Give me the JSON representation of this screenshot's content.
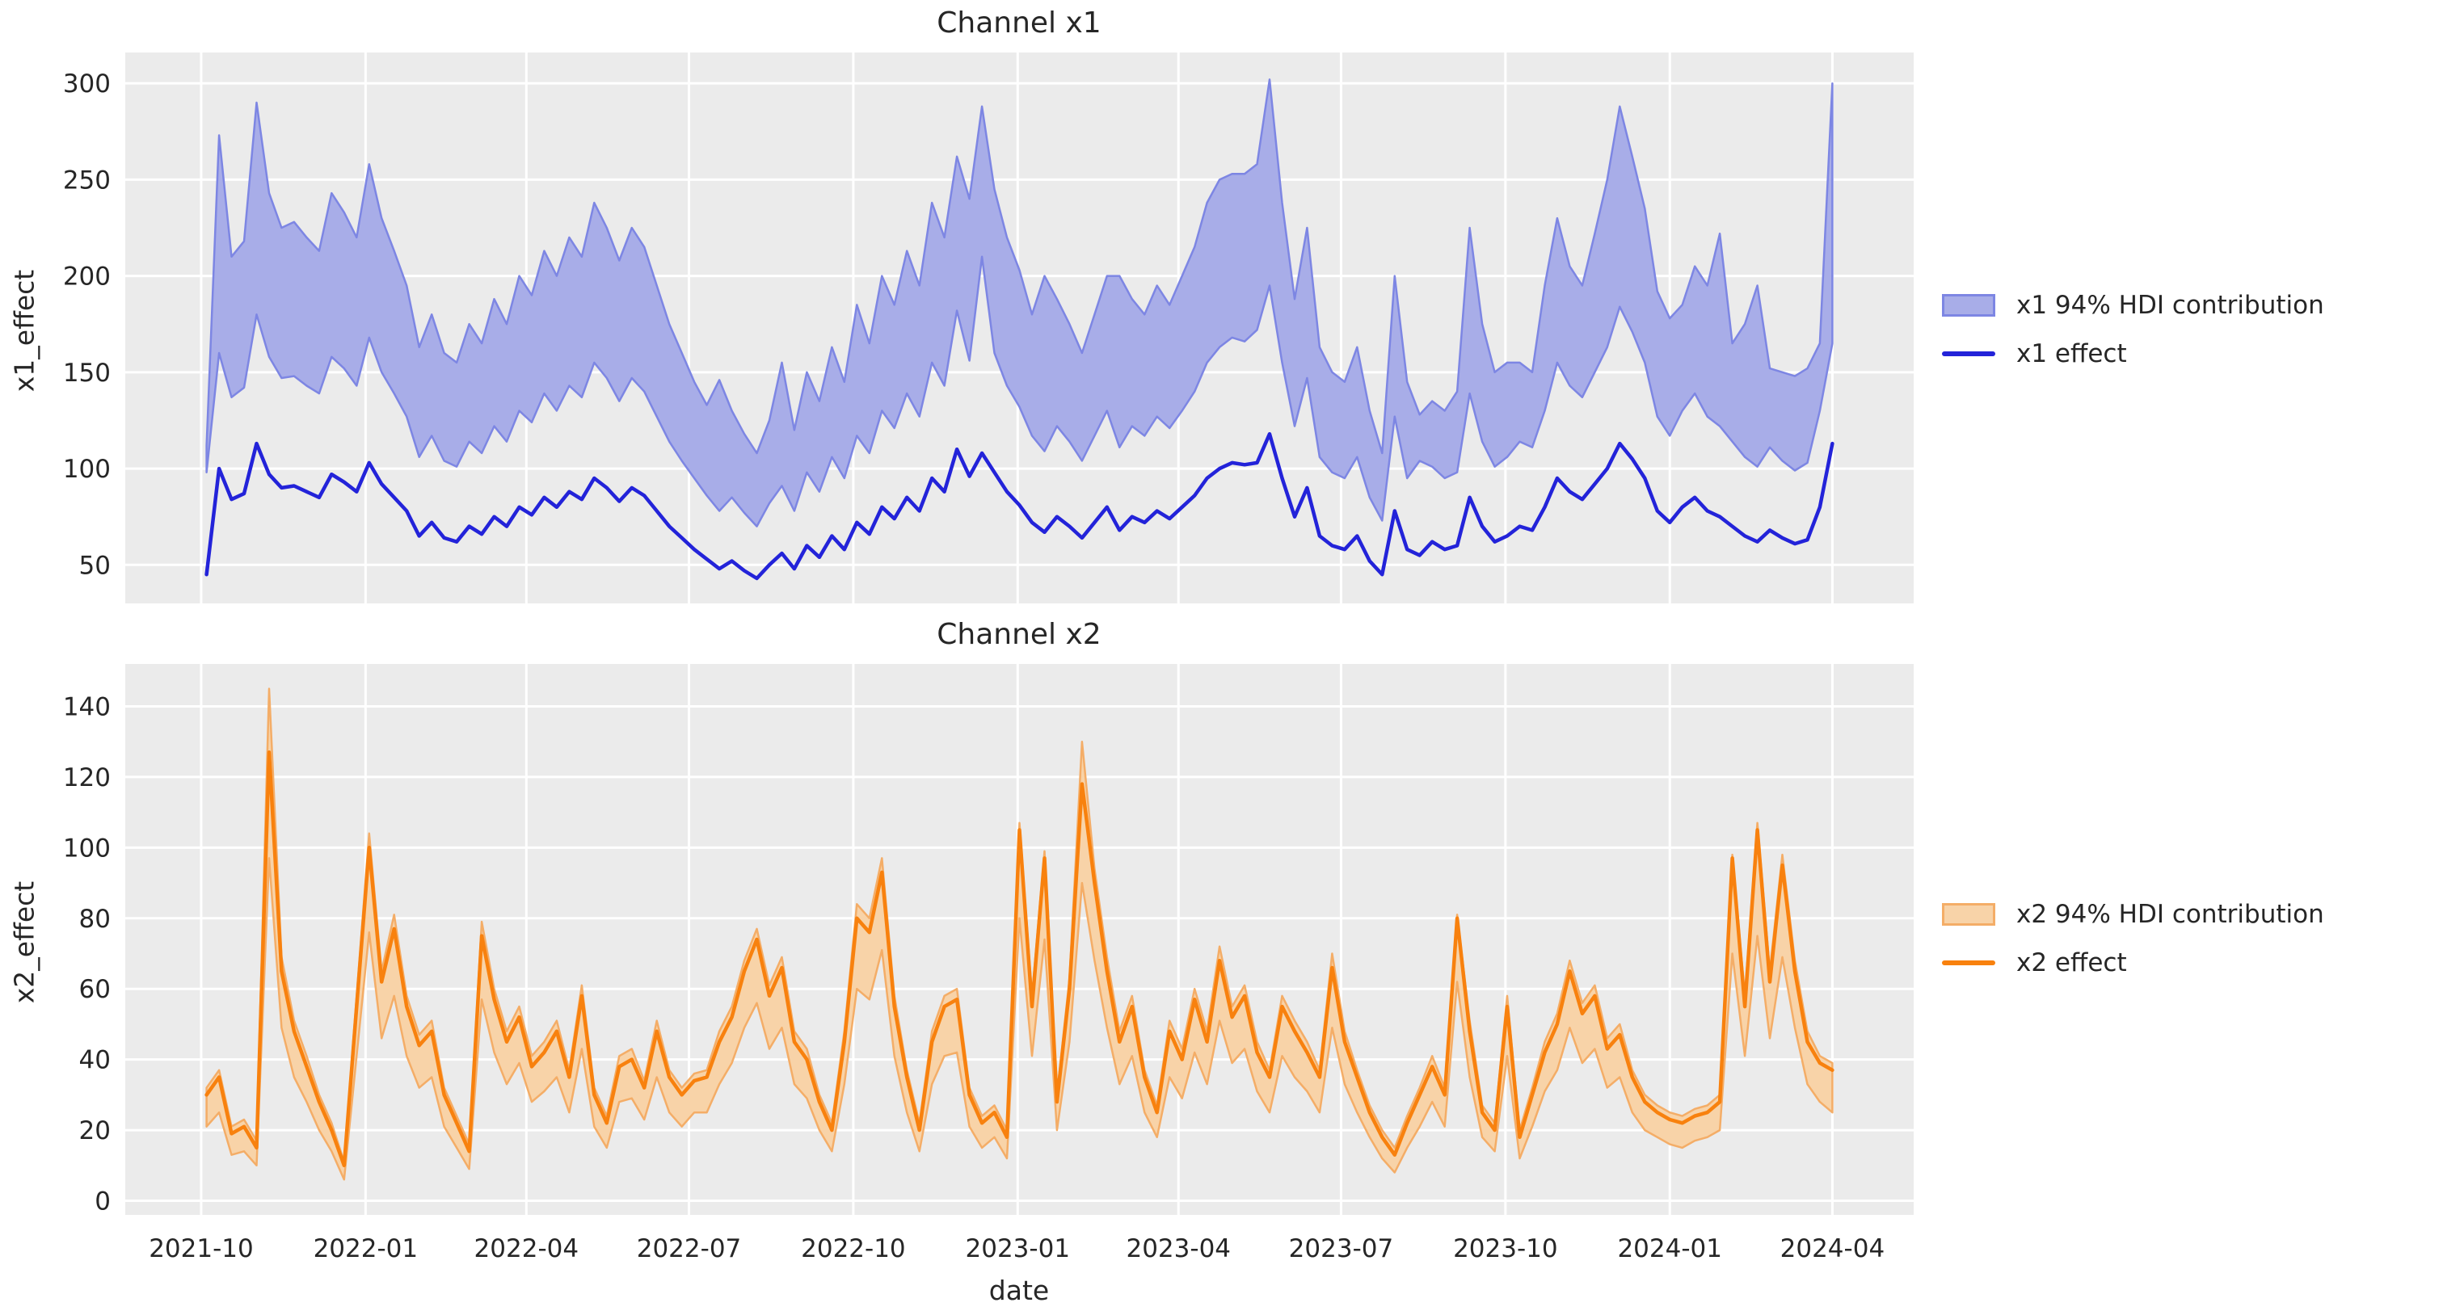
{
  "style": {
    "page_background": "#ffffff",
    "axes_background": "#ebebeb",
    "grid_color": "#ffffff",
    "text_color": "#262626"
  },
  "x_axis": {
    "label": "date"
  },
  "chart_data": [
    {
      "type": "line",
      "name": "x1",
      "title": "Channel x1",
      "ylabel": "x1_effect",
      "x_start": "2021-10-04",
      "x_step_days": 7,
      "n_points": 131,
      "x_tick_labels": [
        "2021-10",
        "2022-01",
        "2022-04",
        "2022-07",
        "2022-10",
        "2023-01",
        "2023-04",
        "2023-07",
        "2023-10",
        "2024-01",
        "2024-04"
      ],
      "y_ticks": [
        50,
        100,
        150,
        200,
        250,
        300
      ],
      "ylim": [
        30,
        316
      ],
      "grid": true,
      "legend_position": "center right outside",
      "series": [
        {
          "name": "x1 94% HDI contribution",
          "kind": "band",
          "fill": "#a8ade8",
          "edge": "#7d86e3",
          "upper": [
            112,
            273,
            210,
            218,
            290,
            243,
            225,
            228,
            220,
            213,
            243,
            233,
            220,
            258,
            230,
            213,
            195,
            163,
            180,
            160,
            155,
            175,
            165,
            188,
            175,
            200,
            190,
            213,
            200,
            220,
            210,
            238,
            225,
            208,
            225,
            215,
            195,
            175,
            160,
            145,
            133,
            146,
            130,
            118,
            108,
            125,
            155,
            120,
            150,
            135,
            163,
            145,
            185,
            165,
            200,
            185,
            213,
            195,
            238,
            220,
            262,
            240,
            288,
            245,
            220,
            203,
            180,
            200,
            188,
            175,
            160,
            180,
            200,
            200,
            188,
            180,
            195,
            185,
            200,
            215,
            238,
            250,
            253,
            253,
            258,
            302,
            238,
            188,
            225,
            163,
            150,
            145,
            163,
            130,
            108,
            200,
            145,
            128,
            135,
            130,
            140,
            225,
            175,
            150,
            155,
            155,
            150,
            195,
            230,
            205,
            195,
            222,
            250,
            288,
            262,
            235,
            192,
            178,
            185,
            205,
            195,
            222,
            165,
            175,
            195,
            152,
            150,
            148,
            152,
            165,
            300
          ],
          "lower": [
            98,
            160,
            137,
            142,
            180,
            158,
            147,
            148,
            143,
            139,
            158,
            152,
            143,
            168,
            150,
            139,
            127,
            106,
            117,
            104,
            101,
            114,
            108,
            122,
            114,
            130,
            124,
            139,
            130,
            143,
            137,
            155,
            147,
            135,
            147,
            140,
            127,
            114,
            104,
            95,
            86,
            78,
            85,
            77,
            70,
            82,
            91,
            78,
            98,
            88,
            106,
            95,
            117,
            108,
            130,
            121,
            139,
            127,
            155,
            143,
            182,
            156,
            210,
            160,
            143,
            132,
            117,
            109,
            122,
            114,
            104,
            117,
            130,
            111,
            122,
            117,
            127,
            121,
            130,
            140,
            155,
            163,
            168,
            166,
            172,
            195,
            155,
            122,
            147,
            106,
            98,
            95,
            106,
            85,
            73,
            127,
            95,
            104,
            101,
            95,
            98,
            139,
            114,
            101,
            106,
            114,
            111,
            130,
            155,
            143,
            137,
            150,
            163,
            184,
            171,
            155,
            127,
            117,
            130,
            139,
            127,
            122,
            114,
            106,
            101,
            111,
            104,
            99,
            103,
            130,
            165
          ]
        },
        {
          "name": "x1 effect",
          "kind": "line",
          "color": "#2323d9",
          "values": [
            45,
            100,
            84,
            87,
            113,
            97,
            90,
            91,
            88,
            85,
            97,
            93,
            88,
            103,
            92,
            85,
            78,
            65,
            72,
            64,
            62,
            70,
            66,
            75,
            70,
            80,
            76,
            85,
            80,
            88,
            84,
            95,
            90,
            83,
            90,
            86,
            78,
            70,
            64,
            58,
            53,
            48,
            52,
            47,
            43,
            50,
            56,
            48,
            60,
            54,
            65,
            58,
            72,
            66,
            80,
            74,
            85,
            78,
            95,
            88,
            110,
            96,
            108,
            98,
            88,
            81,
            72,
            67,
            75,
            70,
            64,
            72,
            80,
            68,
            75,
            72,
            78,
            74,
            80,
            86,
            95,
            100,
            103,
            102,
            103,
            118,
            95,
            75,
            90,
            65,
            60,
            58,
            65,
            52,
            45,
            78,
            58,
            55,
            62,
            58,
            60,
            85,
            70,
            62,
            65,
            70,
            68,
            80,
            95,
            88,
            84,
            92,
            100,
            113,
            105,
            95,
            78,
            72,
            80,
            85,
            78,
            75,
            70,
            65,
            62,
            68,
            64,
            61,
            63,
            80,
            113
          ]
        }
      ]
    },
    {
      "type": "line",
      "name": "x2",
      "title": "Channel x2",
      "ylabel": "x2_effect",
      "xlabel": "date",
      "x_start": "2021-10-04",
      "x_step_days": 7,
      "n_points": 131,
      "x_tick_labels": [
        "2021-10",
        "2022-01",
        "2022-04",
        "2022-07",
        "2022-10",
        "2023-01",
        "2023-04",
        "2023-07",
        "2023-10",
        "2024-01",
        "2024-04"
      ],
      "y_ticks": [
        0,
        20,
        40,
        60,
        80,
        100,
        120,
        140
      ],
      "ylim": [
        -4,
        152
      ],
      "grid": true,
      "legend_position": "center right outside",
      "series": [
        {
          "name": "x2 94% HDI contribution",
          "kind": "band",
          "fill": "#f8d3a8",
          "edge": "#f4ad67",
          "upper": [
            32,
            37,
            21,
            23,
            17,
            145,
            69,
            51,
            41,
            30,
            22,
            11,
            58,
            104,
            65,
            81,
            58,
            47,
            51,
            32,
            24,
            16,
            79,
            60,
            48,
            55,
            41,
            45,
            51,
            37,
            61,
            32,
            24,
            41,
            43,
            34,
            51,
            37,
            32,
            36,
            37,
            48,
            55,
            68,
            77,
            61,
            69,
            48,
            43,
            30,
            22,
            48,
            84,
            80,
            97,
            58,
            37,
            22,
            48,
            58,
            60,
            32,
            24,
            27,
            20,
            107,
            58,
            99,
            30,
            63,
            130,
            94,
            69,
            48,
            58,
            37,
            27,
            51,
            43,
            60,
            48,
            72,
            55,
            61,
            45,
            37,
            58,
            51,
            45,
            37,
            70,
            48,
            37,
            27,
            20,
            15,
            24,
            32,
            41,
            32,
            81,
            51,
            27,
            22,
            58,
            20,
            32,
            45,
            53,
            68,
            56,
            61,
            46,
            50,
            37,
            30,
            27,
            25,
            24,
            26,
            27,
            30,
            98,
            58,
            107,
            65,
            98,
            68,
            48,
            41,
            39
          ],
          "lower": [
            21,
            25,
            13,
            14,
            10,
            97,
            49,
            35,
            28,
            20,
            14,
            6,
            41,
            76,
            46,
            58,
            41,
            32,
            35,
            21,
            15,
            9,
            57,
            42,
            33,
            39,
            28,
            31,
            35,
            25,
            43,
            21,
            15,
            28,
            29,
            23,
            35,
            25,
            21,
            25,
            25,
            33,
            39,
            49,
            56,
            43,
            49,
            33,
            29,
            20,
            14,
            33,
            60,
            57,
            71,
            41,
            25,
            14,
            33,
            41,
            42,
            21,
            15,
            18,
            12,
            80,
            41,
            74,
            20,
            45,
            90,
            68,
            49,
            33,
            41,
            25,
            18,
            35,
            29,
            42,
            33,
            51,
            39,
            43,
            31,
            25,
            41,
            35,
            31,
            25,
            49,
            33,
            25,
            18,
            12,
            8,
            15,
            21,
            28,
            21,
            62,
            35,
            18,
            14,
            41,
            12,
            21,
            31,
            37,
            49,
            39,
            43,
            32,
            35,
            25,
            20,
            18,
            16,
            15,
            17,
            18,
            20,
            70,
            41,
            75,
            46,
            69,
            49,
            33,
            28,
            25
          ]
        },
        {
          "name": "x2 effect",
          "kind": "line",
          "color": "#f8810e",
          "values": [
            30,
            35,
            19,
            21,
            15,
            127,
            65,
            48,
            38,
            28,
            20,
            10,
            55,
            100,
            62,
            77,
            55,
            44,
            48,
            30,
            22,
            14,
            75,
            57,
            45,
            52,
            38,
            42,
            48,
            35,
            58,
            30,
            22,
            38,
            40,
            32,
            48,
            35,
            30,
            34,
            35,
            45,
            52,
            65,
            74,
            58,
            66,
            45,
            40,
            28,
            20,
            45,
            80,
            76,
            93,
            55,
            35,
            20,
            45,
            55,
            57,
            30,
            22,
            25,
            18,
            105,
            55,
            97,
            28,
            60,
            118,
            90,
            65,
            45,
            55,
            35,
            25,
            48,
            40,
            57,
            45,
            68,
            52,
            58,
            42,
            35,
            55,
            48,
            42,
            35,
            66,
            45,
            35,
            25,
            18,
            13,
            22,
            30,
            38,
            30,
            80,
            48,
            25,
            20,
            55,
            18,
            30,
            42,
            50,
            65,
            53,
            58,
            43,
            47,
            35,
            28,
            25,
            23,
            22,
            24,
            25,
            28,
            97,
            55,
            105,
            62,
            95,
            65,
            45,
            39,
            37
          ]
        }
      ]
    }
  ]
}
